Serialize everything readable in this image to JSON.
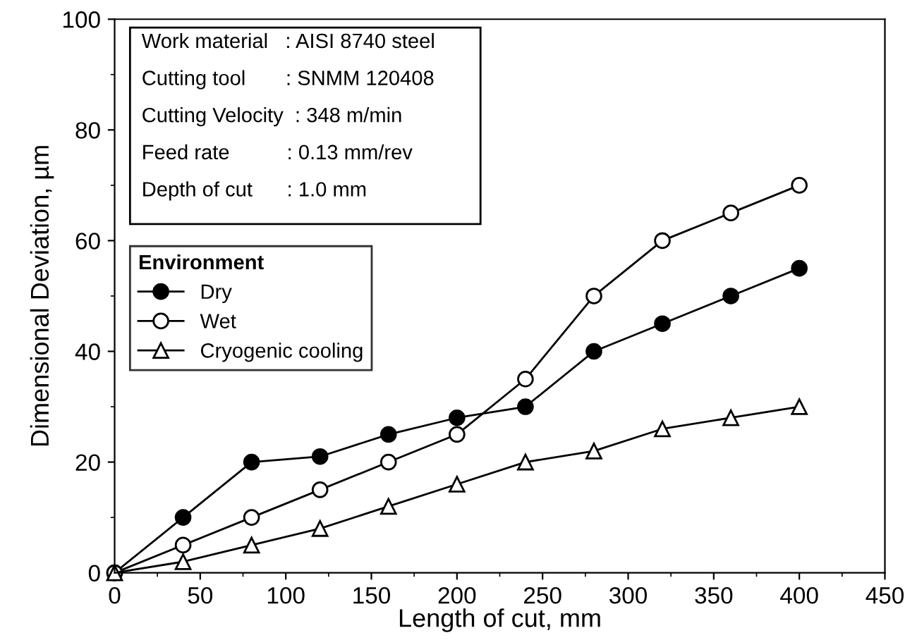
{
  "chart_data": {
    "type": "line",
    "xlabel": "Length of cut, mm",
    "ylabel": "Dimensional Deviation, µm",
    "x": [
      0,
      40,
      80,
      120,
      160,
      200,
      240,
      280,
      320,
      360,
      400
    ],
    "xlim": [
      0,
      450
    ],
    "xticks": [
      0,
      50,
      100,
      150,
      200,
      250,
      300,
      350,
      400,
      450
    ],
    "ylim": [
      0,
      100
    ],
    "yticks": [
      0,
      20,
      40,
      60,
      80,
      100
    ],
    "legend_title": "Environment",
    "legend": "left",
    "grid": false,
    "line_style": "solid",
    "annotations": [
      "Work material   : AISI 8740 steel",
      "Cutting tool       : SNMM 120408",
      "Cutting Velocity  : 348 m/min",
      "Feed rate          : 0.13 mm/rev",
      "Depth of cut      : 1.0 mm"
    ],
    "series": [
      {
        "name": "Dry",
        "color": "#000000",
        "marker": "circle",
        "values": [
          0,
          10,
          20,
          21,
          25,
          28,
          30,
          40,
          45,
          50,
          55
        ]
      },
      {
        "name": "Wet",
        "color": "#000000",
        "marker": "circle",
        "values": [
          0,
          5,
          10,
          15,
          20,
          25,
          35,
          50,
          60,
          65,
          70
        ]
      },
      {
        "name": "Cryogenic cooling",
        "color": "#000000",
        "marker": "triangle",
        "values": [
          0,
          2,
          5,
          8,
          12,
          16,
          20,
          22,
          26,
          28,
          30
        ]
      }
    ]
  }
}
